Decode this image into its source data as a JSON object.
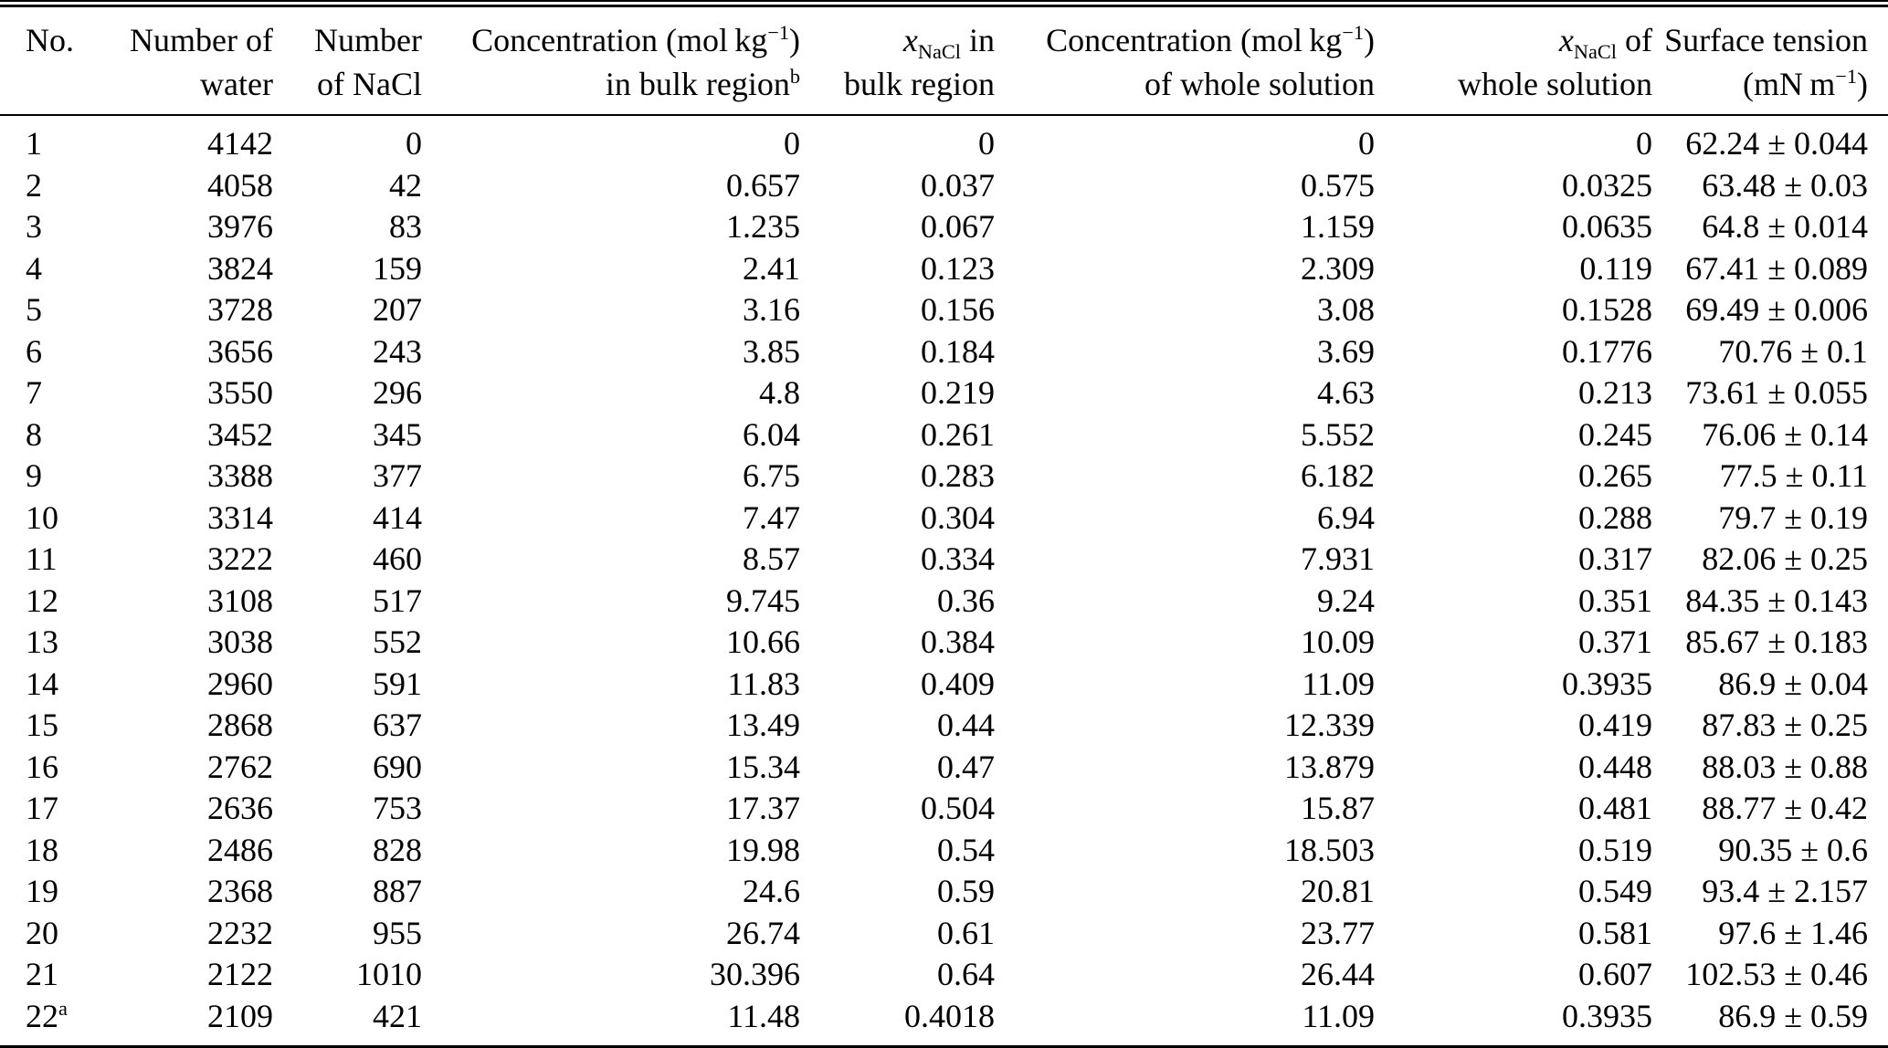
{
  "table": {
    "columns": [
      {
        "id": "no",
        "line1": "No.",
        "line2": ""
      },
      {
        "id": "num-water",
        "line1": "Number of",
        "line2": "water"
      },
      {
        "id": "num-nacl",
        "line1": "Number",
        "line2": "of NaCl"
      },
      {
        "id": "conc-bulk",
        "line1": "Concentration (mol kg^{−1})",
        "line2": "in bulk region^{b}"
      },
      {
        "id": "x-nacl-bulk",
        "line1": "*x*_{NaCl} in",
        "line2": "bulk region"
      },
      {
        "id": "conc-whole",
        "line1": "Concentration (mol kg^{−1})",
        "line2": "of whole solution"
      },
      {
        "id": "x-nacl-whole",
        "line1": "*x*_{NaCl} of",
        "line2": "whole solution"
      },
      {
        "id": "surface-tension",
        "line1": "Surface tension",
        "line2": "(mN m^{−1})"
      }
    ],
    "rows": [
      [
        "1",
        "4142",
        "0",
        "0",
        "0",
        "0",
        "0",
        "62.24 ± 0.044"
      ],
      [
        "2",
        "4058",
        "42",
        "0.657",
        "0.037",
        "0.575",
        "0.0325",
        "63.48 ± 0.03"
      ],
      [
        "3",
        "3976",
        "83",
        "1.235",
        "0.067",
        "1.159",
        "0.0635",
        "64.8 ± 0.014"
      ],
      [
        "4",
        "3824",
        "159",
        "2.41",
        "0.123",
        "2.309",
        "0.119",
        "67.41 ± 0.089"
      ],
      [
        "5",
        "3728",
        "207",
        "3.16",
        "0.156",
        "3.08",
        "0.1528",
        "69.49 ± 0.006"
      ],
      [
        "6",
        "3656",
        "243",
        "3.85",
        "0.184",
        "3.69",
        "0.1776",
        "70.76 ± 0.1"
      ],
      [
        "7",
        "3550",
        "296",
        "4.8",
        "0.219",
        "4.63",
        "0.213",
        "73.61 ± 0.055"
      ],
      [
        "8",
        "3452",
        "345",
        "6.04",
        "0.261",
        "5.552",
        "0.245",
        "76.06 ± 0.14"
      ],
      [
        "9",
        "3388",
        "377",
        "6.75",
        "0.283",
        "6.182",
        "0.265",
        "77.5 ± 0.11"
      ],
      [
        "10",
        "3314",
        "414",
        "7.47",
        "0.304",
        "6.94",
        "0.288",
        "79.7 ± 0.19"
      ],
      [
        "11",
        "3222",
        "460",
        "8.57",
        "0.334",
        "7.931",
        "0.317",
        "82.06 ± 0.25"
      ],
      [
        "12",
        "3108",
        "517",
        "9.745",
        "0.36",
        "9.24",
        "0.351",
        "84.35 ± 0.143"
      ],
      [
        "13",
        "3038",
        "552",
        "10.66",
        "0.384",
        "10.09",
        "0.371",
        "85.67 ± 0.183"
      ],
      [
        "14",
        "2960",
        "591",
        "11.83",
        "0.409",
        "11.09",
        "0.3935",
        "86.9 ± 0.04"
      ],
      [
        "15",
        "2868",
        "637",
        "13.49",
        "0.44",
        "12.339",
        "0.419",
        "87.83 ± 0.25"
      ],
      [
        "16",
        "2762",
        "690",
        "15.34",
        "0.47",
        "13.879",
        "0.448",
        "88.03 ± 0.88"
      ],
      [
        "17",
        "2636",
        "753",
        "17.37",
        "0.504",
        "15.87",
        "0.481",
        "88.77 ± 0.42"
      ],
      [
        "18",
        "2486",
        "828",
        "19.98",
        "0.54",
        "18.503",
        "0.519",
        "90.35 ± 0.6"
      ],
      [
        "19",
        "2368",
        "887",
        "24.6",
        "0.59",
        "20.81",
        "0.549",
        "93.4 ± 2.157"
      ],
      [
        "20",
        "2232",
        "955",
        "26.74",
        "0.61",
        "23.77",
        "0.581",
        "97.6 ± 1.46"
      ],
      [
        "21",
        "2122",
        "1010",
        "30.396",
        "0.64",
        "26.44",
        "0.607",
        "102.53 ± 0.46"
      ],
      [
        "22^{a}",
        "2109",
        "421",
        "11.48",
        "0.4018",
        "11.09",
        "0.3935",
        "86.9 ± 0.59"
      ]
    ],
    "footnote_markers": [
      "a",
      "b"
    ],
    "text_color": "#000000",
    "background_color": "#ffffff"
  }
}
